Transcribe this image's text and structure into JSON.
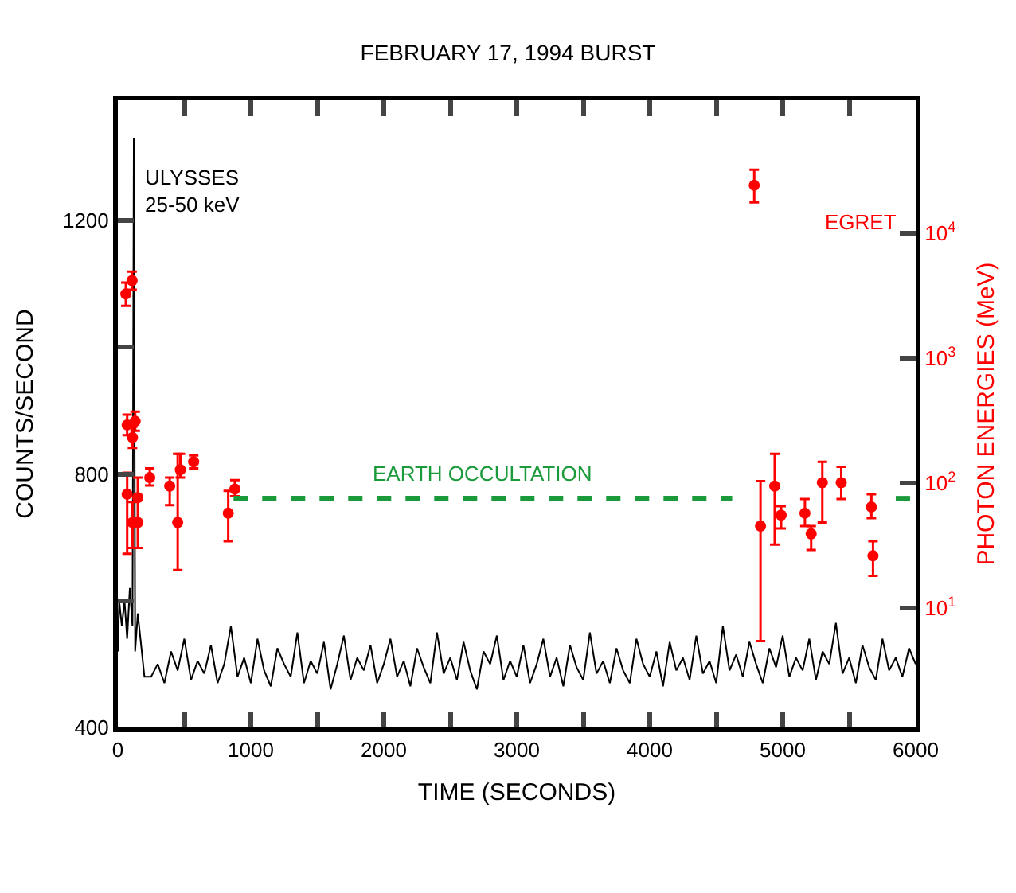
{
  "chart_data": {
    "type": "line",
    "title": "FEBRUARY 17, 1994 BURST",
    "xlabel": "TIME (SECONDS)",
    "ylabel": "COUNTS/SECOND",
    "y2label": "PHOTON ENERGIES (MeV)",
    "xlim": [
      0,
      6000
    ],
    "xticks": [
      0,
      {
        "value": 500,
        "label": null
      },
      1000,
      {
        "value": 1500,
        "label": null
      },
      2000,
      {
        "value": 2500,
        "label": null
      },
      3000,
      {
        "value": 3500,
        "label": null
      },
      4000,
      {
        "value": 4500,
        "label": null
      },
      5000,
      {
        "value": 5500,
        "label": null
      },
      6000
    ],
    "ylim": [
      400,
      1390
    ],
    "yticks": [
      400,
      {
        "value": 600,
        "label": null
      },
      800,
      {
        "value": 1000,
        "label": null
      },
      1200
    ],
    "y2lim": [
      1.1,
      115000
    ],
    "y2ticks": [
      {
        "value": 10,
        "label": "10$^{1}$"
      },
      {
        "value": 100,
        "label": "10$^{2}$"
      },
      {
        "value": 1000,
        "label": "10$^{3}$"
      },
      {
        "value": 10000,
        "label": "10$^{4}$"
      }
    ],
    "log": "y2",
    "legend": false,
    "series": [
      {
        "name": "ULYSSES\n25-50 keV",
        "color": "#000000",
        "marker": "none",
        "line_style": "solid",
        "x": [
          0,
          10,
          30,
          50,
          70,
          90,
          110,
          120,
          130,
          150,
          170,
          200,
          250,
          300,
          350,
          400,
          450,
          500,
          550,
          600,
          650,
          700,
          750,
          800,
          850,
          900,
          950,
          1000,
          1050,
          1100,
          1150,
          1200,
          1250,
          1300,
          1350,
          1400,
          1450,
          1500,
          1550,
          1600,
          1650,
          1700,
          1750,
          1800,
          1850,
          1900,
          1950,
          2000,
          2050,
          2100,
          2150,
          2200,
          2250,
          2300,
          2350,
          2400,
          2450,
          2500,
          2550,
          2600,
          2650,
          2700,
          2750,
          2800,
          2850,
          2900,
          2950,
          3000,
          3050,
          3100,
          3150,
          3200,
          3250,
          3300,
          3350,
          3400,
          3450,
          3500,
          3550,
          3600,
          3650,
          3700,
          3750,
          3800,
          3850,
          3900,
          3950,
          4000,
          4050,
          4100,
          4150,
          4200,
          4250,
          4300,
          4350,
          4400,
          4450,
          4500,
          4550,
          4600,
          4650,
          4700,
          4750,
          4800,
          4850,
          4900,
          4950,
          5000,
          5050,
          5100,
          5150,
          5200,
          5250,
          5300,
          5350,
          5400,
          5450,
          5500,
          5550,
          5600,
          5650,
          5700,
          5750,
          5800,
          5850,
          5900,
          5950,
          6000
        ],
        "values": [
          520,
          600,
          560,
          600,
          540,
          620,
          560,
          1330,
          520,
          580,
          540,
          480,
          480,
          500,
          470,
          520,
          490,
          540,
          475,
          505,
          485,
          530,
          470,
          500,
          560,
          480,
          510,
          470,
          540,
          490,
          465,
          525,
          500,
          480,
          550,
          470,
          505,
          485,
          535,
          460,
          500,
          545,
          475,
          510,
          490,
          530,
          470,
          500,
          540,
          480,
          505,
          465,
          525,
          495,
          470,
          550,
          485,
          510,
          475,
          535,
          490,
          460,
          520,
          500,
          545,
          475,
          505,
          480,
          530,
          470,
          500,
          540,
          480,
          510,
          465,
          530,
          495,
          475,
          550,
          485,
          505,
          470,
          525,
          490,
          470,
          540,
          500,
          480,
          520,
          465,
          535,
          490,
          510,
          475,
          545,
          485,
          505,
          470,
          560,
          490,
          515,
          480,
          535,
          500,
          470,
          525,
          495,
          545,
          480,
          510,
          490,
          540,
          475,
          520,
          500,
          565,
          485,
          510,
          470,
          530,
          495,
          475,
          540,
          490,
          510,
          480,
          525,
          500
        ]
      },
      {
        "name": "EGRET",
        "type": "scatter",
        "axis": "y2",
        "color": "#ff0000",
        "marker": "circle",
        "x": [
          60,
          107,
          70,
          130,
          110,
          70,
          150,
          110,
          150,
          240,
          390,
          470,
          450,
          570,
          830,
          880,
          4786,
          4833,
          4940,
          4988,
          5167,
          5214,
          5298,
          5440,
          5667,
          5679
        ],
        "values": [
          3240,
          4150,
          290,
          310,
          230,
          81,
          76,
          48,
          48,
          110,
          94,
          127,
          48,
          147,
          57,
          89,
          24000,
          45,
          94,
          55,
          57,
          39,
          100,
          100,
          64,
          26
        ],
        "errors": [
          [
            2600,
            4000
          ],
          [
            3500,
            4900
          ],
          [
            240,
            350
          ],
          [
            260,
            370
          ],
          [
            190,
            280
          ],
          [
            27,
            120
          ],
          [
            30,
            110
          ],
          [
            30,
            70
          ],
          null,
          [
            95,
            130
          ],
          [
            66,
            110
          ],
          [
            110,
            170
          ],
          [
            20,
            170
          ],
          [
            130,
            165
          ],
          [
            34,
            86
          ],
          [
            78,
            105
          ],
          [
            17500,
            32000
          ],
          [
            5.4,
            103
          ],
          [
            32,
            170
          ],
          [
            43,
            65
          ],
          [
            45,
            74
          ],
          [
            29,
            45
          ],
          [
            48,
            147
          ],
          [
            74,
            134
          ],
          [
            52,
            81
          ],
          [
            18,
            34
          ]
        ]
      },
      {
        "name": "EARTH OCCULTATION",
        "axis": "y2",
        "color": "#1a9a3a",
        "marker": "none",
        "line_style": "dashed",
        "x": [
          870,
          4620,
          5200,
          5850,
          6000
        ],
        "values": [
          75,
          75,
          null,
          75,
          75
        ]
      }
    ]
  }
}
